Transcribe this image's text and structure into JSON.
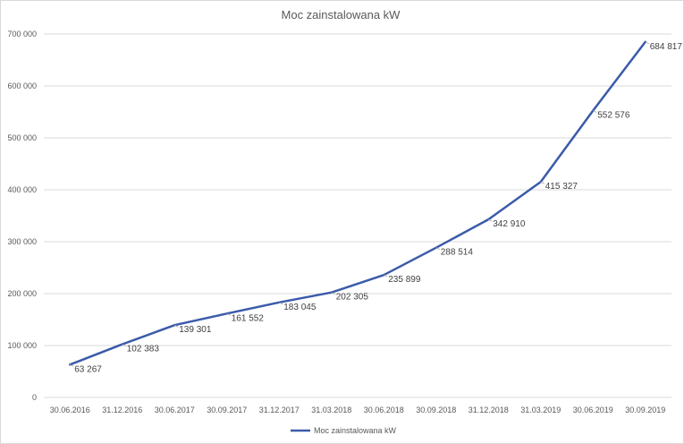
{
  "chart_data": {
    "type": "line",
    "title": "Moc zainstalowana kW",
    "xlabel": "",
    "ylabel": "",
    "ylim": [
      0,
      700000
    ],
    "yticks": [
      0,
      100000,
      200000,
      300000,
      400000,
      500000,
      600000,
      700000
    ],
    "ytick_labels": [
      "0",
      "100 000",
      "200 000",
      "300 000",
      "400 000",
      "500 000",
      "600 000",
      "700 000"
    ],
    "grid": true,
    "legend_position": "bottom",
    "categories": [
      "30.06.2016",
      "31.12.2016",
      "30.06.2017",
      "30.09.2017",
      "31.12.2017",
      "31.03.2018",
      "30.06.2018",
      "30.09.2018",
      "31.12.2018",
      "31.03.2019",
      "30.06.2019",
      "30.09.2019"
    ],
    "series": [
      {
        "name": "Moc zainstalowana kW",
        "color": "#3a5ba9",
        "values": [
          63267,
          102383,
          139301,
          161552,
          183045,
          202305,
          235899,
          288514,
          342910,
          415327,
          552576,
          684817
        ],
        "labels": [
          "63 267",
          "102 383",
          "139 301",
          "161 552",
          "183 045",
          "202 305",
          "235 899",
          "288 514",
          "342 910",
          "415 327",
          "552 576",
          "684 817"
        ]
      }
    ]
  }
}
